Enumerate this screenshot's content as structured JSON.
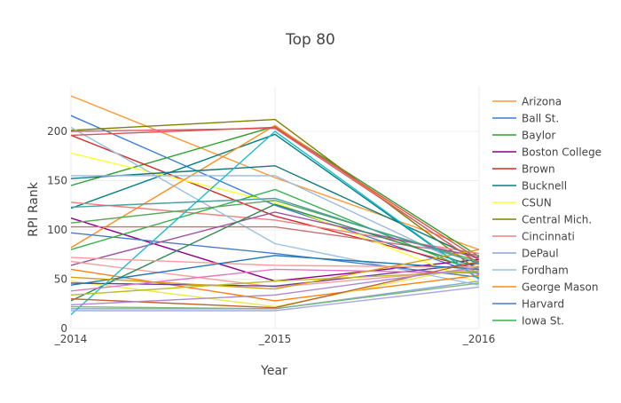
{
  "chart_data": {
    "type": "line",
    "title": "Top 80",
    "xlabel": "Year",
    "ylabel": "RPI Rank",
    "categories": [
      "_2014",
      "_2015",
      "_2016"
    ],
    "ylim": [
      0,
      245
    ],
    "yticks": [
      0,
      50,
      100,
      150,
      200
    ],
    "grid": true,
    "legend_position": "right",
    "series": [
      {
        "name": "Arizona",
        "color": "#ff9933",
        "values": [
          236,
          153,
          80
        ]
      },
      {
        "name": "Ball St.",
        "color": "#3b7dd8",
        "values": [
          216,
          125,
          55
        ]
      },
      {
        "name": "Baylor",
        "color": "#2ca02c",
        "values": [
          145,
          205,
          73
        ]
      },
      {
        "name": "Boston College",
        "color": "#8b008b",
        "values": [
          112,
          48,
          70
        ]
      },
      {
        "name": "Brown",
        "color": "#d62728",
        "values": [
          196,
          114,
          60
        ]
      },
      {
        "name": "Bucknell",
        "color": "#008080",
        "values": [
          122,
          197,
          50
        ]
      },
      {
        "name": "CSUN",
        "color": "#ffff33",
        "values": [
          178,
          128,
          46
        ]
      },
      {
        "name": "Central Mich.",
        "color": "#808000",
        "values": [
          201,
          212,
          58
        ]
      },
      {
        "name": "Cincinnati",
        "color": "#f08080",
        "values": [
          128,
          110,
          76
        ]
      },
      {
        "name": "DePaul",
        "color": "#87a9d6",
        "values": [
          20,
          20,
          48
        ]
      },
      {
        "name": "Fordham",
        "color": "#99c0e0",
        "values": [
          204,
          86,
          44
        ]
      },
      {
        "name": "George Mason",
        "color": "#ff8c1a",
        "values": [
          82,
          206,
          65
        ]
      },
      {
        "name": "Harvard",
        "color": "#4a7cc4",
        "values": [
          97,
          76,
          52
        ]
      },
      {
        "name": "Iowa St.",
        "color": "#33b24d",
        "values": [
          80,
          141,
          56
        ]
      },
      {
        "name": "",
        "color": "#c87070",
        "values": [
          103,
          103,
          74
        ]
      },
      {
        "name": "",
        "color": "#107a7a",
        "values": [
          152,
          165,
          70
        ]
      },
      {
        "name": "",
        "color": "#d06070",
        "values": [
          200,
          203,
          66
        ]
      },
      {
        "name": "",
        "color": "#9ab8e0",
        "values": [
          155,
          155,
          58
        ]
      },
      {
        "name": "",
        "color": "#5aa85a",
        "values": [
          107,
          130,
          68
        ]
      },
      {
        "name": "",
        "color": "#ff7f0e",
        "values": [
          60,
          28,
          54
        ]
      },
      {
        "name": "",
        "color": "#a050a0",
        "values": [
          64,
          118,
          72
        ]
      },
      {
        "name": "",
        "color": "#f4a0a0",
        "values": [
          68,
          42,
          60
        ]
      },
      {
        "name": "",
        "color": "#2e8b57",
        "values": [
          28,
          126,
          62
        ]
      },
      {
        "name": "",
        "color": "#e8e84a",
        "values": [
          48,
          22,
          64
        ]
      },
      {
        "name": "",
        "color": "#6a3d9a",
        "values": [
          46,
          43,
          66
        ]
      },
      {
        "name": "",
        "color": "#e377c2",
        "values": [
          38,
          60,
          56
        ]
      },
      {
        "name": "",
        "color": "#17becf",
        "values": [
          14,
          200,
          50
        ]
      },
      {
        "name": "",
        "color": "#bcbd22",
        "values": [
          34,
          48,
          58
        ]
      },
      {
        "name": "",
        "color": "#ff9999",
        "values": [
          72,
          64,
          62
        ]
      },
      {
        "name": "",
        "color": "#1f77b4",
        "values": [
          44,
          74,
          60
        ]
      },
      {
        "name": "",
        "color": "#c06030",
        "values": [
          30,
          21,
          68
        ]
      },
      {
        "name": "",
        "color": "#b088d0",
        "values": [
          24,
          34,
          62
        ]
      },
      {
        "name": "",
        "color": "#7ab87a",
        "values": [
          22,
          20,
          46
        ]
      },
      {
        "name": "",
        "color": "#a8a8e8",
        "values": [
          18,
          18,
          42
        ]
      },
      {
        "name": "",
        "color": "#d4a017",
        "values": [
          52,
          40,
          80
        ]
      },
      {
        "name": "",
        "color": "#4aa0a0",
        "values": [
          123,
          132,
          66
        ]
      },
      {
        "name": "",
        "color": "#e05050",
        "values": [
          196,
          204,
          70
        ]
      }
    ]
  }
}
